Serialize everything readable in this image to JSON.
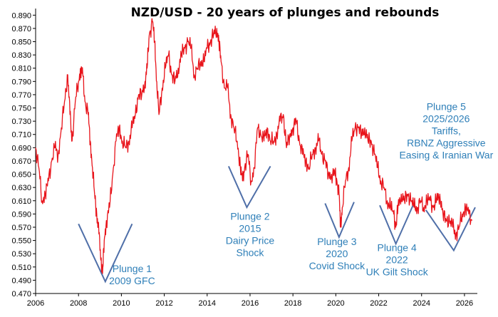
{
  "chart_data": {
    "type": "line",
    "title": "NZD/USD  - 20 years of plunges and rebounds",
    "xlabel": "",
    "ylabel": "",
    "xlim": [
      2006,
      2026.6
    ],
    "ylim": [
      0.47,
      0.9
    ],
    "x_ticks": [
      "2006",
      "2008",
      "2010",
      "2012",
      "2014",
      "2016",
      "2018",
      "2020",
      "2022",
      "2024",
      "2026"
    ],
    "y_ticks": [
      "0.890",
      "0.870",
      "0.850",
      "0.830",
      "0.810",
      "0.790",
      "0.770",
      "0.750",
      "0.730",
      "0.710",
      "0.690",
      "0.670",
      "0.650",
      "0.630",
      "0.610",
      "0.590",
      "0.570",
      "0.550",
      "0.530",
      "0.510",
      "0.490",
      "0.470"
    ],
    "grid": false,
    "line_color": "#e8141b",
    "annotation_color": "#2e7fb8",
    "series": [
      {
        "x": [
          2006.0,
          2006.15,
          2006.3,
          2006.45,
          2006.6,
          2006.75,
          2006.9,
          2007.05,
          2007.2,
          2007.35,
          2007.5,
          2007.6,
          2007.7,
          2007.85,
          2008.0,
          2008.1,
          2008.2,
          2008.3,
          2008.45,
          2008.55,
          2008.65,
          2008.75,
          2008.85,
          2008.95,
          2009.05,
          2009.12,
          2009.2,
          2009.3,
          2009.45,
          2009.6,
          2009.75,
          2009.9,
          2010.05,
          2010.2,
          2010.35,
          2010.5,
          2010.65,
          2010.8,
          2010.95,
          2011.1,
          2011.2,
          2011.3,
          2011.45,
          2011.55,
          2011.65,
          2011.75,
          2011.9,
          2012.05,
          2012.2,
          2012.35,
          2012.5,
          2012.65,
          2012.8,
          2012.95,
          2013.1,
          2013.25,
          2013.4,
          2013.55,
          2013.7,
          2013.85,
          2014.0,
          2014.15,
          2014.3,
          2014.45,
          2014.55,
          2014.65,
          2014.8,
          2014.95,
          2015.1,
          2015.25,
          2015.4,
          2015.55,
          2015.65,
          2015.75,
          2015.9,
          2016.05,
          2016.2,
          2016.35,
          2016.5,
          2016.65,
          2016.8,
          2016.95,
          2017.1,
          2017.25,
          2017.4,
          2017.55,
          2017.7,
          2017.85,
          2018.0,
          2018.15,
          2018.3,
          2018.45,
          2018.6,
          2018.75,
          2018.9,
          2019.05,
          2019.2,
          2019.35,
          2019.5,
          2019.65,
          2019.8,
          2019.95,
          2020.05,
          2020.15,
          2020.22,
          2020.3,
          2020.45,
          2020.6,
          2020.75,
          2020.9,
          2021.05,
          2021.2,
          2021.35,
          2021.5,
          2021.65,
          2021.8,
          2021.95,
          2022.1,
          2022.25,
          2022.4,
          2022.55,
          2022.7,
          2022.8,
          2022.9,
          2023.05,
          2023.2,
          2023.35,
          2023.5,
          2023.65,
          2023.8,
          2023.95,
          2024.1,
          2024.25,
          2024.4,
          2024.55,
          2024.7,
          2024.85,
          2025.0,
          2025.15,
          2025.3,
          2025.45,
          2025.6,
          2025.75,
          2025.9,
          2026.05,
          2026.2,
          2026.35
        ],
        "values": [
          0.69,
          0.66,
          0.61,
          0.62,
          0.64,
          0.67,
          0.69,
          0.68,
          0.72,
          0.76,
          0.8,
          0.74,
          0.7,
          0.76,
          0.79,
          0.81,
          0.8,
          0.76,
          0.74,
          0.7,
          0.66,
          0.62,
          0.59,
          0.56,
          0.52,
          0.5,
          0.55,
          0.58,
          0.6,
          0.65,
          0.7,
          0.72,
          0.7,
          0.69,
          0.7,
          0.72,
          0.74,
          0.77,
          0.77,
          0.79,
          0.81,
          0.86,
          0.88,
          0.85,
          0.79,
          0.74,
          0.78,
          0.81,
          0.83,
          0.8,
          0.79,
          0.81,
          0.83,
          0.84,
          0.85,
          0.84,
          0.8,
          0.81,
          0.82,
          0.82,
          0.84,
          0.85,
          0.86,
          0.87,
          0.85,
          0.82,
          0.78,
          0.78,
          0.74,
          0.72,
          0.7,
          0.66,
          0.64,
          0.66,
          0.68,
          0.64,
          0.66,
          0.72,
          0.71,
          0.7,
          0.72,
          0.7,
          0.7,
          0.71,
          0.73,
          0.74,
          0.69,
          0.71,
          0.72,
          0.73,
          0.7,
          0.68,
          0.67,
          0.66,
          0.68,
          0.69,
          0.7,
          0.68,
          0.67,
          0.65,
          0.65,
          0.65,
          0.64,
          0.62,
          0.57,
          0.6,
          0.64,
          0.66,
          0.7,
          0.72,
          0.72,
          0.71,
          0.72,
          0.7,
          0.7,
          0.68,
          0.66,
          0.64,
          0.63,
          0.61,
          0.6,
          0.59,
          0.57,
          0.6,
          0.62,
          0.61,
          0.62,
          0.61,
          0.6,
          0.6,
          0.61,
          0.6,
          0.61,
          0.61,
          0.6,
          0.61,
          0.62,
          0.59,
          0.58,
          0.58,
          0.57,
          0.56,
          0.57,
          0.59,
          0.6,
          0.59,
          0.58
        ]
      }
    ],
    "annotations": [
      {
        "lines": [
          "Plunge 1",
          "2009 GFC"
        ],
        "x": 2010.5,
        "y": 0.502,
        "align": "middle",
        "v": {
          "x": [
            2008.0,
            2009.25,
            2010.5
          ],
          "y": [
            0.575,
            0.488,
            0.575
          ]
        }
      },
      {
        "lines": [
          "Plunge 2",
          "2015",
          "Dairy Price",
          "Shock"
        ],
        "x": 2016.0,
        "y": 0.581,
        "align": "middle",
        "v": {
          "x": [
            2015.0,
            2015.85,
            2016.95
          ],
          "y": [
            0.662,
            0.6,
            0.662
          ]
        }
      },
      {
        "lines": [
          "Plunge 3",
          "2020",
          "Covid Shock"
        ],
        "x": 2020.05,
        "y": 0.543,
        "align": "middle",
        "v": {
          "x": [
            2019.5,
            2020.15,
            2020.85
          ],
          "y": [
            0.606,
            0.555,
            0.608
          ]
        }
      },
      {
        "lines": [
          "Plunge 4",
          "2022",
          "UK Gilt Shock"
        ],
        "x": 2022.85,
        "y": 0.534,
        "align": "middle",
        "v": {
          "x": [
            2022.05,
            2022.8,
            2023.6
          ],
          "y": [
            0.603,
            0.545,
            0.603
          ]
        }
      },
      {
        "lines": [
          "Plunge 5",
          "2025/2026",
          "Tariffs,",
          "RBNZ Aggressive",
          "Easing & Iranian War"
        ],
        "x": 2025.15,
        "y": 0.747,
        "align": "middle",
        "v": {
          "x": [
            2024.2,
            2025.5,
            2026.5
          ],
          "y": [
            0.596,
            0.535,
            0.6
          ]
        }
      }
    ]
  }
}
